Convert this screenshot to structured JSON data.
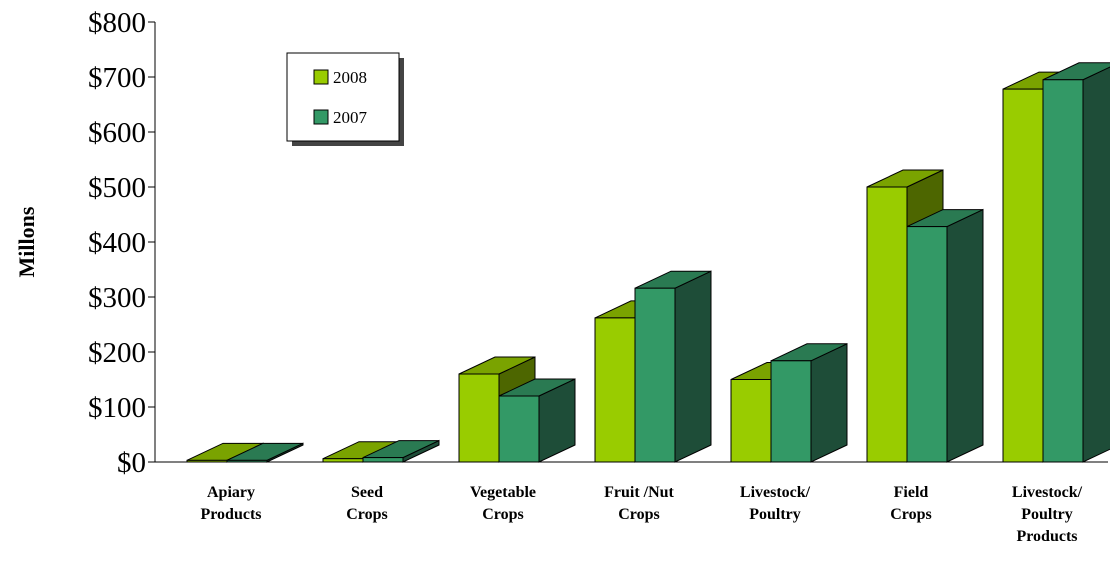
{
  "chart_data": {
    "type": "bar",
    "ylabel": "Millons",
    "ylim": [
      0,
      800
    ],
    "yticks": [
      0,
      100,
      200,
      300,
      400,
      500,
      600,
      700,
      800
    ],
    "ytick_labels": [
      "$0",
      "$100",
      "$200",
      "$300",
      "$400",
      "$500",
      "$600",
      "$700",
      "$800"
    ],
    "categories": [
      [
        "Apiary",
        "Products"
      ],
      [
        "Seed",
        "Crops"
      ],
      [
        "Vegetable",
        "Crops"
      ],
      [
        "Fruit /Nut",
        "Crops"
      ],
      [
        "Livestock/",
        "Poultry"
      ],
      [
        "Field",
        "Crops"
      ],
      [
        "Livestock/",
        "Poultry",
        "Products"
      ]
    ],
    "series": [
      {
        "name": "2008",
        "values": [
          3,
          6,
          160,
          262,
          150,
          500,
          678
        ],
        "colors": {
          "front": "#99cc00",
          "top": "#7aa300",
          "side": "#4d6600"
        }
      },
      {
        "name": "2007",
        "values": [
          3,
          8,
          120,
          316,
          184,
          428,
          695
        ],
        "colors": {
          "front": "#339966",
          "top": "#2a7a52",
          "side": "#1e4d38"
        }
      }
    ],
    "legend_position": "top-left",
    "grid": false
  }
}
